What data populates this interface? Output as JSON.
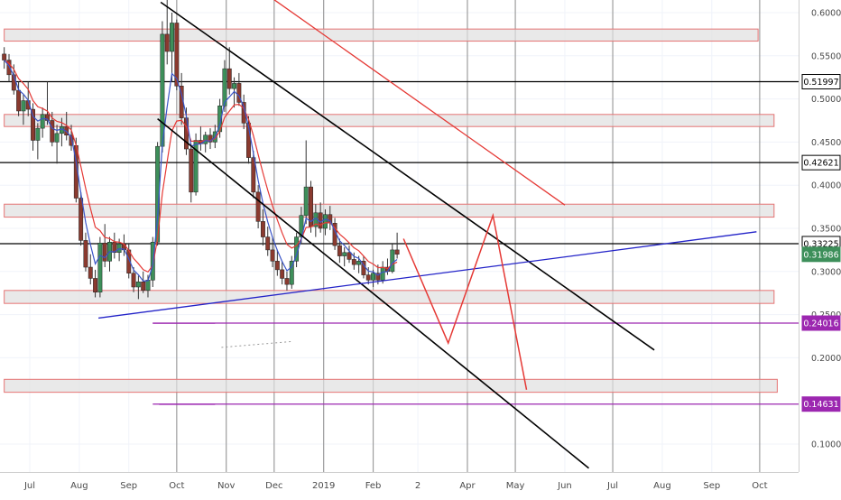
{
  "chart_data": {
    "type": "candlestick",
    "title": "",
    "xlabel": "",
    "ylabel": "",
    "ylim": [
      0.05,
      0.615
    ],
    "time_range": [
      "2018-06-15",
      "2019-10-31"
    ],
    "x_ticks": [
      {
        "date": "2018-07-01",
        "label": "Jul"
      },
      {
        "date": "2018-08-01",
        "label": "Aug"
      },
      {
        "date": "2018-09-01",
        "label": "Sep"
      },
      {
        "date": "2018-10-01",
        "label": "Oct"
      },
      {
        "date": "2018-11-01",
        "label": "Nov"
      },
      {
        "date": "2018-12-01",
        "label": "Dec"
      },
      {
        "date": "2019-01-01",
        "label": "2019"
      },
      {
        "date": "2019-02-01",
        "label": "Feb"
      },
      {
        "date": "2019-03-01",
        "label": "2"
      },
      {
        "date": "2019-04-01",
        "label": "Apr"
      },
      {
        "date": "2019-05-01",
        "label": "May"
      },
      {
        "date": "2019-06-01",
        "label": "Jun"
      },
      {
        "date": "2019-07-01",
        "label": "Jul"
      },
      {
        "date": "2019-08-01",
        "label": "Aug"
      },
      {
        "date": "2019-09-01",
        "label": "Sep"
      },
      {
        "date": "2019-10-01",
        "label": "Oct"
      }
    ],
    "y_ticks": [
      {
        "value": 0.6,
        "label": "0.60000"
      },
      {
        "value": 0.55,
        "label": "0.55000"
      },
      {
        "value": 0.5,
        "label": "0.50000"
      },
      {
        "value": 0.45,
        "label": "0.45000"
      },
      {
        "value": 0.4,
        "label": "0.40000"
      },
      {
        "value": 0.35,
        "label": "0.35000"
      },
      {
        "value": 0.3,
        "label": "0.30000"
      },
      {
        "value": 0.25,
        "label": "0.25000"
      },
      {
        "value": 0.2,
        "label": "0.20000"
      },
      {
        "value": 0.1,
        "label": "0.10000"
      }
    ],
    "price_tags": [
      {
        "value": 0.51997,
        "label": "0.51997",
        "style": "black"
      },
      {
        "value": 0.42621,
        "label": "0.42621",
        "style": "black"
      },
      {
        "value": 0.33225,
        "label": "0.33225",
        "style": "black"
      },
      {
        "value": 0.31986,
        "label": "0.31986",
        "style": "green"
      },
      {
        "value": 0.24016,
        "label": "0.24016",
        "style": "purple"
      },
      {
        "value": 0.14631,
        "label": "0.14631",
        "style": "purple"
      }
    ],
    "vertical_markers": [
      "2018-10-01",
      "2018-11-01",
      "2018-12-01",
      "2019-01-01",
      "2019-02-01",
      "2019-04-01",
      "2019-05-01",
      "2019-07-01",
      "2019-10-01"
    ],
    "horizontal_levels": [
      {
        "value": 0.51997,
        "color": "#000000"
      },
      {
        "value": 0.42621,
        "color": "#000000"
      },
      {
        "value": 0.33225,
        "color": "#000000"
      },
      {
        "value": 0.24016,
        "color": "#9c27b0"
      },
      {
        "value": 0.14631,
        "color": "#9c27b0"
      }
    ],
    "zones": [
      {
        "start": "2018-06-15",
        "end": "2019-09-30",
        "low": 0.567,
        "high": 0.581
      },
      {
        "start": "2018-06-15",
        "end": "2019-10-10",
        "low": 0.468,
        "high": 0.482
      },
      {
        "start": "2018-06-15",
        "end": "2019-10-10",
        "low": 0.363,
        "high": 0.378
      },
      {
        "start": "2018-06-15",
        "end": "2019-10-10",
        "low": 0.263,
        "high": 0.278
      },
      {
        "start": "2018-06-15",
        "end": "2019-10-12",
        "low": 0.16,
        "high": 0.175
      }
    ],
    "trendlines": [
      {
        "name": "channel-upper",
        "color": "#000000",
        "from": [
          "2018-09-21",
          0.612
        ],
        "to": [
          "2019-07-27",
          0.209
        ]
      },
      {
        "name": "channel-lower",
        "color": "#000000",
        "from": [
          "2018-09-19",
          0.477
        ],
        "to": [
          "2019-06-16",
          0.072
        ]
      },
      {
        "name": "red-descending",
        "color": "#e53935",
        "from": [
          "2018-12-01",
          0.615
        ],
        "to": [
          "2019-06-01",
          0.377
        ]
      },
      {
        "name": "support-ascending",
        "color": "#2323c8",
        "from": [
          "2018-08-13",
          0.246
        ],
        "to": [
          "2019-09-29",
          0.346
        ]
      },
      {
        "name": "purple-short",
        "color": "#9c27b0",
        "from": [
          "2018-09-16",
          0.24
        ],
        "to": [
          "2018-10-25",
          0.24
        ]
      },
      {
        "name": "purple-low",
        "color": "#9c27b0",
        "from": [
          "2018-09-20",
          0.146
        ],
        "to": [
          "2018-10-25",
          0.146
        ]
      }
    ],
    "projection_path": {
      "color": "#e53935",
      "points": [
        [
          "2019-02-20",
          0.338
        ],
        [
          "2019-03-20",
          0.217
        ],
        [
          "2019-04-17",
          0.365
        ],
        [
          "2019-05-08",
          0.163
        ]
      ]
    },
    "dotted_line": {
      "color": "#999999",
      "from": [
        "2018-10-29",
        0.212
      ],
      "to": [
        "2018-12-13",
        0.219
      ]
    },
    "candles": [
      [
        "2018-06-15",
        0.552,
        0.56,
        0.535,
        0.545
      ],
      [
        "2018-06-18",
        0.545,
        0.552,
        0.52,
        0.528
      ],
      [
        "2018-06-21",
        0.528,
        0.54,
        0.505,
        0.51
      ],
      [
        "2018-06-24",
        0.51,
        0.52,
        0.48,
        0.486
      ],
      [
        "2018-06-27",
        0.486,
        0.505,
        0.47,
        0.498
      ],
      [
        "2018-06-30",
        0.498,
        0.52,
        0.48,
        0.488
      ],
      [
        "2018-07-03",
        0.488,
        0.495,
        0.44,
        0.452
      ],
      [
        "2018-07-06",
        0.452,
        0.472,
        0.43,
        0.466
      ],
      [
        "2018-07-09",
        0.466,
        0.49,
        0.455,
        0.482
      ],
      [
        "2018-07-12",
        0.482,
        0.52,
        0.47,
        0.475
      ],
      [
        "2018-07-15",
        0.475,
        0.485,
        0.445,
        0.45
      ],
      [
        "2018-07-18",
        0.45,
        0.47,
        0.425,
        0.46
      ],
      [
        "2018-07-21",
        0.46,
        0.478,
        0.445,
        0.468
      ],
      [
        "2018-07-24",
        0.468,
        0.485,
        0.452,
        0.458
      ],
      [
        "2018-07-27",
        0.458,
        0.47,
        0.44,
        0.446
      ],
      [
        "2018-07-30",
        0.446,
        0.455,
        0.38,
        0.385
      ],
      [
        "2018-08-02",
        0.385,
        0.392,
        0.33,
        0.336
      ],
      [
        "2018-08-05",
        0.336,
        0.345,
        0.3,
        0.305
      ],
      [
        "2018-08-08",
        0.305,
        0.32,
        0.285,
        0.292
      ],
      [
        "2018-08-11",
        0.292,
        0.302,
        0.27,
        0.276
      ],
      [
        "2018-08-14",
        0.276,
        0.34,
        0.27,
        0.333
      ],
      [
        "2018-08-17",
        0.333,
        0.355,
        0.305,
        0.312
      ],
      [
        "2018-08-20",
        0.312,
        0.34,
        0.3,
        0.334
      ],
      [
        "2018-08-23",
        0.334,
        0.345,
        0.315,
        0.322
      ],
      [
        "2018-08-26",
        0.322,
        0.338,
        0.312,
        0.332
      ],
      [
        "2018-08-29",
        0.332,
        0.343,
        0.318,
        0.325
      ],
      [
        "2018-09-01",
        0.325,
        0.332,
        0.292,
        0.298
      ],
      [
        "2018-09-04",
        0.298,
        0.305,
        0.276,
        0.282
      ],
      [
        "2018-09-07",
        0.282,
        0.295,
        0.268,
        0.288
      ],
      [
        "2018-09-10",
        0.288,
        0.3,
        0.275,
        0.278
      ],
      [
        "2018-09-13",
        0.278,
        0.296,
        0.27,
        0.29
      ],
      [
        "2018-09-16",
        0.29,
        0.34,
        0.282,
        0.334
      ],
      [
        "2018-09-19",
        0.334,
        0.45,
        0.33,
        0.445
      ],
      [
        "2018-09-22",
        0.445,
        0.59,
        0.438,
        0.575
      ],
      [
        "2018-09-25",
        0.575,
        0.615,
        0.54,
        0.555
      ],
      [
        "2018-09-28",
        0.555,
        0.6,
        0.52,
        0.588
      ],
      [
        "2018-10-01",
        0.588,
        0.592,
        0.51,
        0.515
      ],
      [
        "2018-10-04",
        0.515,
        0.53,
        0.47,
        0.478
      ],
      [
        "2018-10-07",
        0.478,
        0.49,
        0.435,
        0.442
      ],
      [
        "2018-10-10",
        0.442,
        0.448,
        0.38,
        0.392
      ],
      [
        "2018-10-13",
        0.392,
        0.46,
        0.388,
        0.452
      ],
      [
        "2018-10-16",
        0.452,
        0.468,
        0.44,
        0.448
      ],
      [
        "2018-10-19",
        0.448,
        0.462,
        0.438,
        0.458
      ],
      [
        "2018-10-22",
        0.458,
        0.466,
        0.442,
        0.45
      ],
      [
        "2018-10-25",
        0.45,
        0.47,
        0.443,
        0.462
      ],
      [
        "2018-10-28",
        0.462,
        0.5,
        0.455,
        0.492
      ],
      [
        "2018-10-31",
        0.492,
        0.545,
        0.485,
        0.535
      ],
      [
        "2018-11-03",
        0.535,
        0.56,
        0.505,
        0.512
      ],
      [
        "2018-11-06",
        0.512,
        0.525,
        0.49,
        0.518
      ],
      [
        "2018-11-09",
        0.518,
        0.53,
        0.492,
        0.496
      ],
      [
        "2018-11-12",
        0.496,
        0.505,
        0.465,
        0.472
      ],
      [
        "2018-11-15",
        0.472,
        0.48,
        0.425,
        0.432
      ],
      [
        "2018-11-18",
        0.432,
        0.44,
        0.385,
        0.392
      ],
      [
        "2018-11-21",
        0.392,
        0.4,
        0.35,
        0.358
      ],
      [
        "2018-11-24",
        0.358,
        0.372,
        0.33,
        0.34
      ],
      [
        "2018-11-27",
        0.34,
        0.352,
        0.318,
        0.325
      ],
      [
        "2018-11-30",
        0.325,
        0.34,
        0.305,
        0.312
      ],
      [
        "2018-12-03",
        0.312,
        0.325,
        0.295,
        0.302
      ],
      [
        "2018-12-06",
        0.302,
        0.312,
        0.285,
        0.292
      ],
      [
        "2018-12-09",
        0.292,
        0.3,
        0.278,
        0.285
      ],
      [
        "2018-12-12",
        0.285,
        0.318,
        0.28,
        0.312
      ],
      [
        "2018-12-15",
        0.312,
        0.345,
        0.305,
        0.34
      ],
      [
        "2018-12-18",
        0.34,
        0.375,
        0.332,
        0.365
      ],
      [
        "2018-12-21",
        0.365,
        0.452,
        0.355,
        0.398
      ],
      [
        "2018-12-24",
        0.398,
        0.405,
        0.345,
        0.352
      ],
      [
        "2018-12-27",
        0.352,
        0.378,
        0.34,
        0.368
      ],
      [
        "2018-12-30",
        0.368,
        0.38,
        0.345,
        0.35
      ],
      [
        "2019-01-02",
        0.35,
        0.372,
        0.342,
        0.366
      ],
      [
        "2019-01-05",
        0.366,
        0.376,
        0.348,
        0.356
      ],
      [
        "2019-01-08",
        0.356,
        0.362,
        0.325,
        0.33
      ],
      [
        "2019-01-11",
        0.33,
        0.338,
        0.31,
        0.318
      ],
      [
        "2019-01-14",
        0.318,
        0.328,
        0.306,
        0.322
      ],
      [
        "2019-01-17",
        0.322,
        0.33,
        0.31,
        0.314
      ],
      [
        "2019-01-20",
        0.314,
        0.322,
        0.302,
        0.308
      ],
      [
        "2019-01-23",
        0.308,
        0.318,
        0.298,
        0.312
      ],
      [
        "2019-01-26",
        0.312,
        0.318,
        0.292,
        0.296
      ],
      [
        "2019-01-29",
        0.296,
        0.305,
        0.285,
        0.29
      ],
      [
        "2019-02-01",
        0.29,
        0.302,
        0.282,
        0.298
      ],
      [
        "2019-02-04",
        0.298,
        0.308,
        0.285,
        0.29
      ],
      [
        "2019-02-07",
        0.29,
        0.312,
        0.286,
        0.305
      ],
      [
        "2019-02-10",
        0.305,
        0.315,
        0.296,
        0.3
      ],
      [
        "2019-02-13",
        0.3,
        0.332,
        0.298,
        0.325
      ],
      [
        "2019-02-16",
        0.325,
        0.345,
        0.315,
        0.32
      ]
    ]
  }
}
